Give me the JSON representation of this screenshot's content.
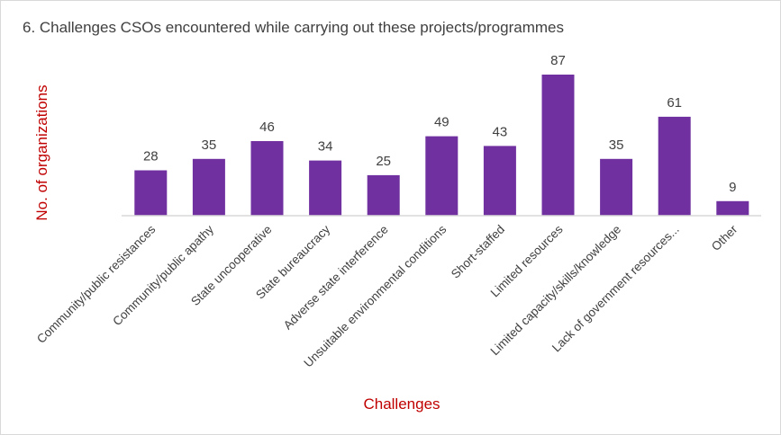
{
  "chart_data": {
    "type": "bar",
    "title": "6. Challenges CSOs encountered while carrying out these projects/programmes",
    "xlabel": "Challenges",
    "ylabel": "No. of organizations",
    "categories": [
      "Community/public resistances",
      "Community/public apathy",
      "State uncooperative",
      "State bureaucracy",
      "Adverse state interference",
      "Unsuitable environmental conditions",
      "Short-staffed",
      "Limited resources",
      "Limited capacity/skills/knowledge",
      "Lack of government resources...",
      "Other"
    ],
    "values": [
      28,
      35,
      46,
      34,
      25,
      49,
      43,
      87,
      35,
      61,
      9
    ],
    "ylim": [
      0,
      87
    ],
    "grid": false,
    "legend": "none",
    "data_labels": true,
    "colors": {
      "bar": "#7030a0",
      "axis_title": "#c00000",
      "text": "#404040",
      "axis_line": "#d9d9d9"
    }
  }
}
